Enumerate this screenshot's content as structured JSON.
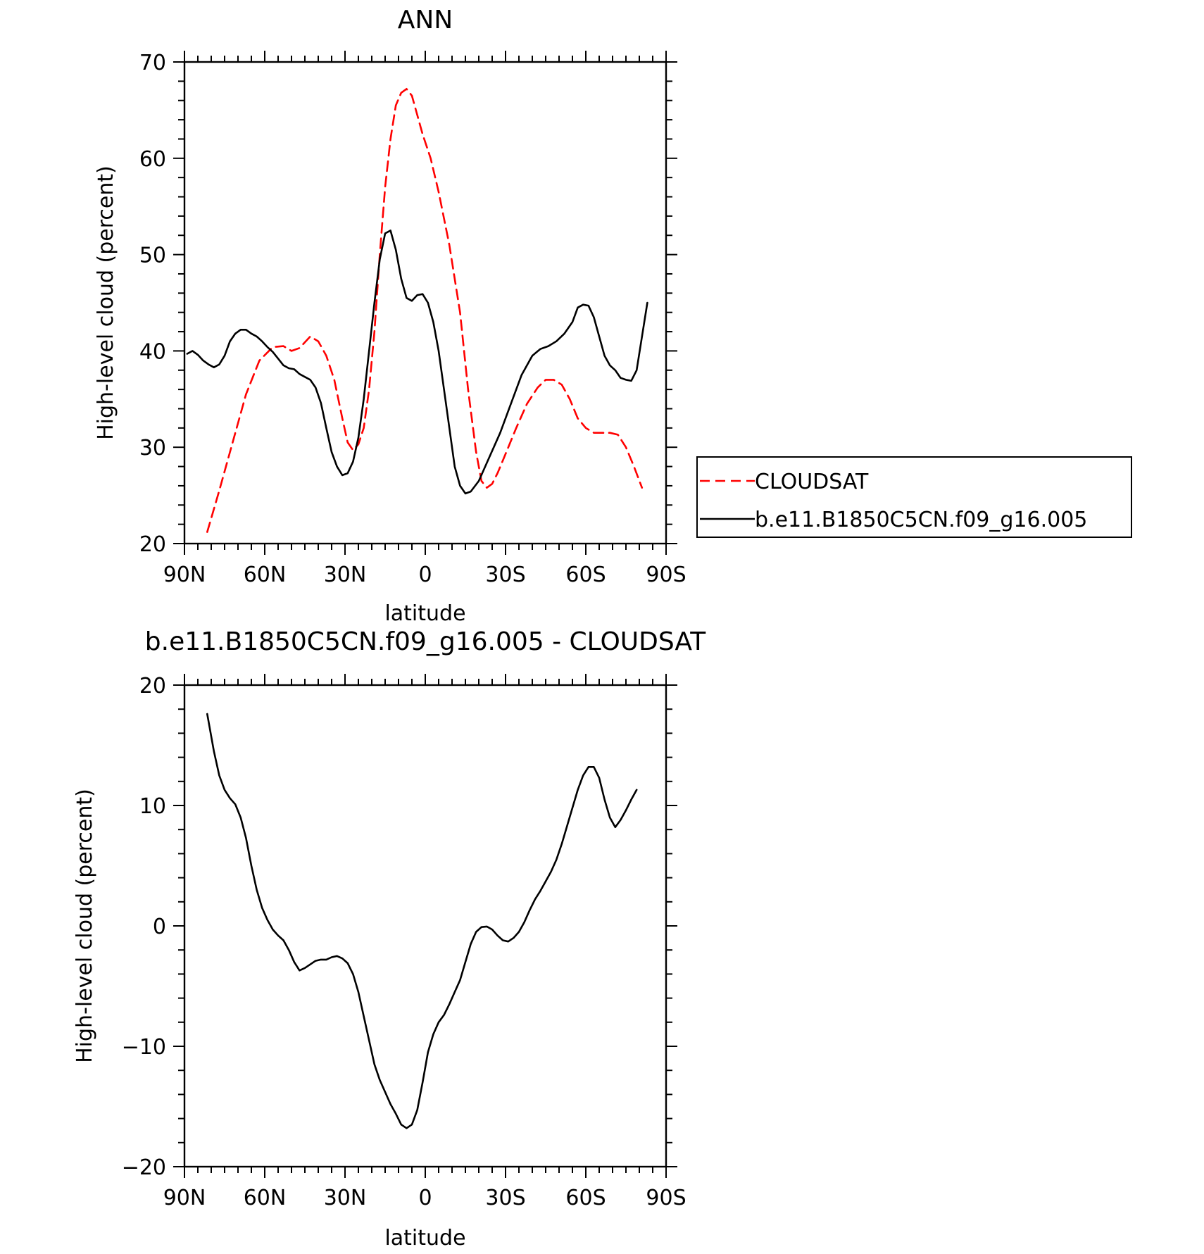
{
  "chart_data": [
    {
      "type": "line",
      "title": "ANN",
      "xlabel": "latitude",
      "ylabel": "High-level cloud (percent)",
      "xlim": [
        90,
        -90
      ],
      "ylim": [
        20,
        70
      ],
      "x_ticks": [
        {
          "value": 90,
          "label": "90N"
        },
        {
          "value": 60,
          "label": "60N"
        },
        {
          "value": 30,
          "label": "30N"
        },
        {
          "value": 0,
          "label": "0"
        },
        {
          "value": -30,
          "label": "30S"
        },
        {
          "value": -60,
          "label": "60S"
        },
        {
          "value": -90,
          "label": "90S"
        }
      ],
      "y_ticks": [
        {
          "value": 20,
          "label": "20"
        },
        {
          "value": 30,
          "label": "30"
        },
        {
          "value": 40,
          "label": "40"
        },
        {
          "value": 50,
          "label": "50"
        },
        {
          "value": 60,
          "label": "60"
        },
        {
          "value": 70,
          "label": "70"
        }
      ],
      "grid": false,
      "legend_position": "right",
      "series": [
        {
          "name": "CLOUDSAT",
          "color": "#ff0000",
          "dash": "dashed",
          "points": [
            [
              81.5,
              21.2
            ],
            [
              77,
              25.5
            ],
            [
              72,
              30.5
            ],
            [
              67,
              35.5
            ],
            [
              62,
              39
            ],
            [
              57,
              40.4
            ],
            [
              53,
              40.5
            ],
            [
              50,
              40
            ],
            [
              47,
              40.3
            ],
            [
              43,
              41.5
            ],
            [
              40,
              41
            ],
            [
              37,
              39.5
            ],
            [
              34,
              37
            ],
            [
              31,
              33
            ],
            [
              29,
              30.5
            ],
            [
              27,
              29.7
            ],
            [
              25,
              30.3
            ],
            [
              23,
              32
            ],
            [
              21,
              36
            ],
            [
              19,
              42
            ],
            [
              17,
              50
            ],
            [
              15,
              57
            ],
            [
              13,
              62
            ],
            [
              11,
              65.5
            ],
            [
              9,
              66.8
            ],
            [
              7,
              67.2
            ],
            [
              5,
              66.5
            ],
            [
              3,
              64.5
            ],
            [
              1,
              62.5
            ],
            [
              -2,
              60
            ],
            [
              -5,
              56.5
            ],
            [
              -9,
              51
            ],
            [
              -13,
              44
            ],
            [
              -16,
              36
            ],
            [
              -19,
              29.5
            ],
            [
              -21,
              26.5
            ],
            [
              -23,
              25.8
            ],
            [
              -25,
              26.2
            ],
            [
              -27,
              27.3
            ],
            [
              -30,
              29.3
            ],
            [
              -34,
              32
            ],
            [
              -38,
              34.5
            ],
            [
              -42,
              36.2
            ],
            [
              -45,
              37
            ],
            [
              -48,
              37
            ],
            [
              -51,
              36.5
            ],
            [
              -54,
              35
            ],
            [
              -57,
              33
            ],
            [
              -60,
              32
            ],
            [
              -63,
              31.5
            ],
            [
              -66,
              31.5
            ],
            [
              -69,
              31.5
            ],
            [
              -72,
              31.3
            ],
            [
              -75,
              30
            ],
            [
              -78,
              28
            ],
            [
              -81,
              25.8
            ]
          ]
        },
        {
          "name": "b.e11.B1850C5CN.f09_g16.005",
          "color": "#000000",
          "dash": "solid",
          "points": [
            [
              89,
              39.7
            ],
            [
              87,
              40
            ],
            [
              85,
              39.6
            ],
            [
              83,
              39
            ],
            [
              81,
              38.6
            ],
            [
              79,
              38.3
            ],
            [
              77,
              38.6
            ],
            [
              75,
              39.5
            ],
            [
              73,
              41
            ],
            [
              71,
              41.8
            ],
            [
              69,
              42.2
            ],
            [
              67,
              42.2
            ],
            [
              65,
              41.8
            ],
            [
              63,
              41.5
            ],
            [
              61,
              41
            ],
            [
              59,
              40.4
            ],
            [
              57,
              39.9
            ],
            [
              55,
              39.2
            ],
            [
              53,
              38.5
            ],
            [
              51,
              38.2
            ],
            [
              49,
              38.1
            ],
            [
              47,
              37.6
            ],
            [
              45,
              37.3
            ],
            [
              43,
              37
            ],
            [
              41,
              36.2
            ],
            [
              39,
              34.6
            ],
            [
              37,
              32
            ],
            [
              35,
              29.5
            ],
            [
              33,
              28
            ],
            [
              31,
              27.1
            ],
            [
              29,
              27.3
            ],
            [
              27,
              28.5
            ],
            [
              25,
              31
            ],
            [
              23,
              35
            ],
            [
              21,
              40
            ],
            [
              19,
              45
            ],
            [
              17,
              49.5
            ],
            [
              15,
              52.2
            ],
            [
              13,
              52.5
            ],
            [
              11,
              50.5
            ],
            [
              9,
              47.5
            ],
            [
              7,
              45.5
            ],
            [
              5,
              45.2
            ],
            [
              3,
              45.8
            ],
            [
              1,
              45.9
            ],
            [
              -1,
              45
            ],
            [
              -3,
              43
            ],
            [
              -5,
              40
            ],
            [
              -7,
              36
            ],
            [
              -9,
              32
            ],
            [
              -11,
              28
            ],
            [
              -13,
              26
            ],
            [
              -15,
              25.2
            ],
            [
              -17,
              25.4
            ],
            [
              -20,
              26.5
            ],
            [
              -24,
              29
            ],
            [
              -28,
              31.5
            ],
            [
              -32,
              34.5
            ],
            [
              -36,
              37.5
            ],
            [
              -40,
              39.5
            ],
            [
              -43,
              40.2
            ],
            [
              -46,
              40.5
            ],
            [
              -49,
              41
            ],
            [
              -52,
              41.8
            ],
            [
              -55,
              43
            ],
            [
              -57,
              44.5
            ],
            [
              -59,
              44.8
            ],
            [
              -61,
              44.7
            ],
            [
              -63,
              43.5
            ],
            [
              -65,
              41.5
            ],
            [
              -67,
              39.5
            ],
            [
              -69,
              38.5
            ],
            [
              -71,
              38
            ],
            [
              -73,
              37.2
            ],
            [
              -75,
              37
            ],
            [
              -77,
              36.9
            ],
            [
              -79,
              38
            ],
            [
              -81,
              41.5
            ],
            [
              -83,
              45
            ]
          ]
        }
      ]
    },
    {
      "type": "line",
      "title": "b.e11.B1850C5CN.f09_g16.005 - CLOUDSAT",
      "xlabel": "latitude",
      "ylabel": "High-level cloud (percent)",
      "xlim": [
        90,
        -90
      ],
      "ylim": [
        -20,
        20
      ],
      "x_ticks": [
        {
          "value": 90,
          "label": "90N"
        },
        {
          "value": 60,
          "label": "60N"
        },
        {
          "value": 30,
          "label": "30N"
        },
        {
          "value": 0,
          "label": "0"
        },
        {
          "value": -30,
          "label": "30S"
        },
        {
          "value": -60,
          "label": "60S"
        },
        {
          "value": -90,
          "label": "90S"
        }
      ],
      "y_ticks": [
        {
          "value": -20,
          "label": "−20"
        },
        {
          "value": -10,
          "label": "−10"
        },
        {
          "value": 0,
          "label": "0"
        },
        {
          "value": 10,
          "label": "10"
        },
        {
          "value": 20,
          "label": "20"
        }
      ],
      "grid": false,
      "series": [
        {
          "color": "#000000",
          "dash": "solid",
          "points": [
            [
              81.5,
              17.6
            ],
            [
              79,
              14.5
            ],
            [
              77,
              12.5
            ],
            [
              75,
              11.3
            ],
            [
              73,
              10.6
            ],
            [
              71,
              10.1
            ],
            [
              69,
              9
            ],
            [
              67,
              7.3
            ],
            [
              65,
              5
            ],
            [
              63,
              3
            ],
            [
              61,
              1.5
            ],
            [
              59,
              0.5
            ],
            [
              57,
              -0.3
            ],
            [
              55,
              -0.8
            ],
            [
              53,
              -1.2
            ],
            [
              51,
              -2
            ],
            [
              49,
              -3
            ],
            [
              47,
              -3.7
            ],
            [
              45,
              -3.5
            ],
            [
              43,
              -3.2
            ],
            [
              41,
              -2.9
            ],
            [
              39,
              -2.8
            ],
            [
              37,
              -2.8
            ],
            [
              35,
              -2.6
            ],
            [
              33,
              -2.5
            ],
            [
              31,
              -2.7
            ],
            [
              29,
              -3.1
            ],
            [
              27,
              -4
            ],
            [
              25,
              -5.5
            ],
            [
              23,
              -7.5
            ],
            [
              21,
              -9.5
            ],
            [
              19,
              -11.5
            ],
            [
              17,
              -12.8
            ],
            [
              15,
              -13.8
            ],
            [
              13,
              -14.8
            ],
            [
              11,
              -15.6
            ],
            [
              9,
              -16.5
            ],
            [
              7,
              -16.8
            ],
            [
              5,
              -16.5
            ],
            [
              3,
              -15.3
            ],
            [
              1,
              -13
            ],
            [
              -1,
              -10.5
            ],
            [
              -3,
              -9
            ],
            [
              -5,
              -8
            ],
            [
              -7,
              -7.4
            ],
            [
              -9,
              -6.5
            ],
            [
              -11,
              -5.5
            ],
            [
              -13,
              -4.5
            ],
            [
              -15,
              -3
            ],
            [
              -17,
              -1.5
            ],
            [
              -19,
              -0.5
            ],
            [
              -21,
              -0.1
            ],
            [
              -23,
              -0.05
            ],
            [
              -25,
              -0.3
            ],
            [
              -27,
              -0.8
            ],
            [
              -29,
              -1.2
            ],
            [
              -31,
              -1.3
            ],
            [
              -33,
              -1
            ],
            [
              -35,
              -0.5
            ],
            [
              -37,
              0.3
            ],
            [
              -39,
              1.3
            ],
            [
              -41,
              2.2
            ],
            [
              -43,
              2.9
            ],
            [
              -45,
              3.7
            ],
            [
              -47,
              4.5
            ],
            [
              -49,
              5.5
            ],
            [
              -51,
              6.8
            ],
            [
              -53,
              8.3
            ],
            [
              -55,
              9.8
            ],
            [
              -57,
              11.3
            ],
            [
              -59,
              12.5
            ],
            [
              -61,
              13.2
            ],
            [
              -63,
              13.2
            ],
            [
              -65,
              12.3
            ],
            [
              -67,
              10.5
            ],
            [
              -69,
              9
            ],
            [
              -71,
              8.2
            ],
            [
              -73,
              8.8
            ],
            [
              -75,
              9.6
            ],
            [
              -77,
              10.5
            ],
            [
              -79,
              11.3
            ]
          ]
        }
      ]
    }
  ]
}
